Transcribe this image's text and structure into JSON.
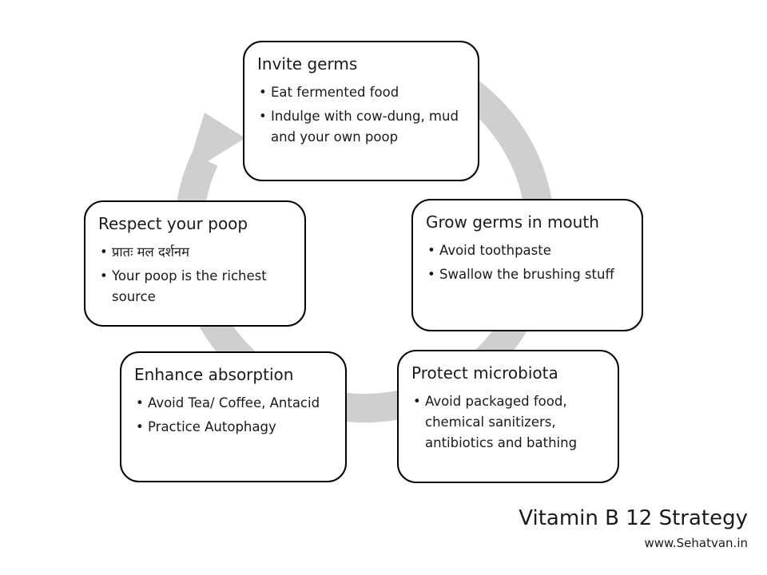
{
  "diagram": {
    "ring_color": "#cfcfcf",
    "border_color": "#000000",
    "steps": [
      {
        "title": "Invite germs",
        "bullets": [
          "Eat fermented food",
          "Indulge with cow-dung, mud and your own poop"
        ]
      },
      {
        "title": "Grow germs in mouth",
        "bullets": [
          "Avoid toothpaste",
          "Swallow the brushing stuff"
        ]
      },
      {
        "title": "Protect microbiota",
        "bullets": [
          "Avoid packaged food, chemical sanitizers, antibiotics and bathing"
        ]
      },
      {
        "title": "Enhance absorption",
        "bullets": [
          "Avoid Tea/ Coffee, Antacid",
          "Practice Autophagy"
        ]
      },
      {
        "title": "Respect your poop",
        "bullets": [
          "प्रातः मल दर्शनम",
          "Your poop is the richest source"
        ]
      }
    ]
  },
  "footer": {
    "title": "Vitamin B 12 Strategy",
    "site": "www.Sehatvan.in"
  }
}
